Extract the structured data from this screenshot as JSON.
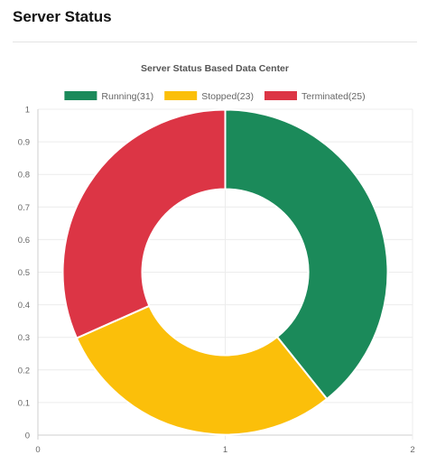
{
  "card": {
    "title": "Server Status"
  },
  "chart_data": {
    "type": "pie",
    "variant": "doughnut",
    "title": "Server Status Based Data Center",
    "legend_position": "top",
    "grid": true,
    "x_ticks": [
      "0",
      "1",
      "2"
    ],
    "y_ticks": [
      "0",
      "0.1",
      "0.2",
      "0.3",
      "0.4",
      "0.5",
      "0.6",
      "0.7",
      "0.8",
      "0.9",
      "1"
    ],
    "slices": [
      {
        "label": "Running",
        "value": 31,
        "legend": "Running(31)",
        "color": "#1b8a5a"
      },
      {
        "label": "Stopped",
        "value": 23,
        "legend": "Stopped(23)",
        "color": "#fbbf0a"
      },
      {
        "label": "Terminated",
        "value": 25,
        "legend": "Terminated(25)",
        "color": "#dc3545"
      }
    ]
  }
}
